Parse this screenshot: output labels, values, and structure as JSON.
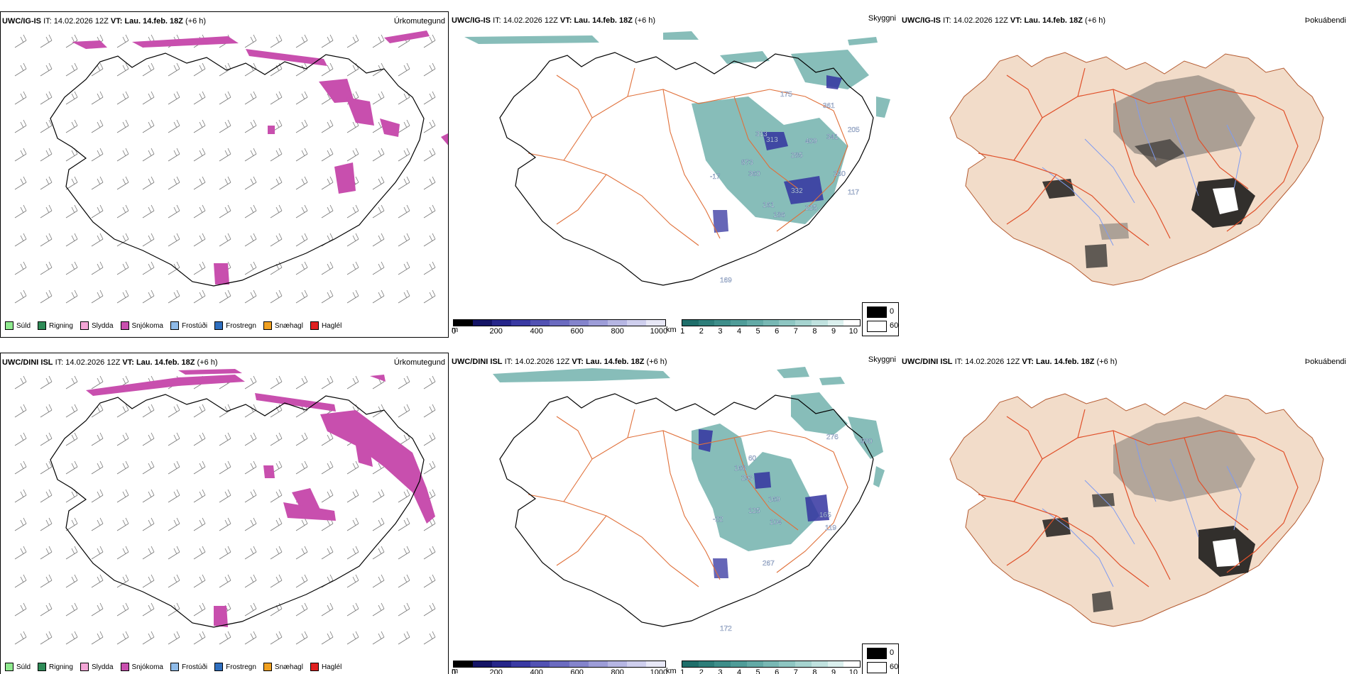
{
  "rows": [
    {
      "model": "UWC/IG-IS",
      "it_label": "IT:",
      "it_value": "14.02.2026 12Z",
      "vt_label": "VT:",
      "vt_value": "Lau. 14.feb. 18Z",
      "lead": "(+6 h)",
      "types": [
        "Úrkomutegund",
        "Skyggni",
        "Þokuábendi"
      ],
      "visibility_labels": [
        "175",
        "361",
        "313",
        "313",
        "409",
        "285",
        "341",
        "205",
        "873",
        "360",
        "260",
        "117",
        "332",
        "161",
        "186",
        "225",
        "-17",
        "169"
      ]
    },
    {
      "model": "UWC/DINI ISL",
      "it_label": "IT:",
      "it_value": "14.02.2026 12Z",
      "vt_label": "VT:",
      "vt_value": "Lau. 14.feb. 18Z",
      "lead": "(+6 h)",
      "types": [
        "Úrkomutegund",
        "Skyggni",
        "Þokuábendi"
      ],
      "visibility_labels": [
        "276",
        "930",
        "168",
        "293",
        "60",
        "169",
        "125",
        "104",
        "165",
        "119",
        "267",
        "-22",
        "172"
      ]
    }
  ],
  "precip_legend": [
    {
      "label": "Súld",
      "color": "#8fea8f"
    },
    {
      "label": "Rigning",
      "color": "#2e8b57"
    },
    {
      "label": "Slydda",
      "color": "#f4a6d7"
    },
    {
      "label": "Snjókoma",
      "color": "#c84fae"
    },
    {
      "label": "Frostúði",
      "color": "#8fbbe8"
    },
    {
      "label": "Frostregn",
      "color": "#2f6fbf"
    },
    {
      "label": "Snæhagl",
      "color": "#f0a020"
    },
    {
      "label": "Haglél",
      "color": "#e02020"
    }
  ],
  "height_bar": {
    "unit": "m",
    "labels": [
      "0",
      "200",
      "400",
      "600",
      "800",
      "1000"
    ],
    "colors": [
      "#000000",
      "#141466",
      "#26268a",
      "#3a3aa3",
      "#5252b3",
      "#6b6bc0",
      "#8484cc",
      "#9d9dd8",
      "#b6b6e3",
      "#cfcfee",
      "#e8e8f7"
    ]
  },
  "vis_bar": {
    "unit": "km",
    "labels": [
      "1",
      "2",
      "3",
      "4",
      "5",
      "6",
      "7",
      "8",
      "9",
      "10"
    ],
    "colors": [
      "#1f6e6a",
      "#2e7e7a",
      "#3e8e8a",
      "#4f9c98",
      "#63aaa6",
      "#78b8b4",
      "#8ec6c2",
      "#a6d4d0",
      "#c0e2df",
      "#dbf0ee",
      "#ffffff"
    ]
  },
  "fog_legend": {
    "labels": [
      "0",
      "60"
    ],
    "colors": [
      "#000000",
      "#ffffff"
    ]
  },
  "colors": {
    "land": "#f2dcc9",
    "road": "#e0703a",
    "river": "#7f9bf0",
    "snow": "#c84fae",
    "vis": "#5fa7a2",
    "height": "#3434a0"
  }
}
